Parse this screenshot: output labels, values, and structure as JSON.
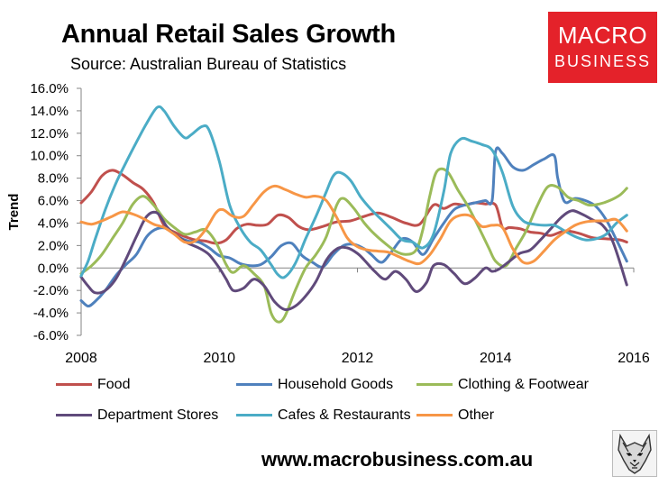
{
  "header": {
    "title": "Annual Retail Sales Growth",
    "subtitle": "Source: Australian Bureau of Statistics"
  },
  "logo": {
    "line1": "MACRO",
    "line2": "BUSINESS"
  },
  "footer": {
    "url": "www.macrobusiness.com.au"
  },
  "colors": {
    "food": "#c0504d",
    "household": "#4f81bd",
    "clothing": "#9bbb59",
    "department": "#604a7b",
    "cafes": "#4bacc6",
    "other": "#f79646",
    "logo_bg": "#e4222a"
  },
  "chart_data": {
    "type": "line",
    "title": "Annual Retail Sales Growth",
    "xlabel": "",
    "ylabel": "Trend",
    "xlim": [
      2008,
      2016
    ],
    "ylim": [
      -6,
      16
    ],
    "x_ticks": [
      "2008",
      "2010",
      "2012",
      "2014",
      "2016"
    ],
    "y_ticks": [
      "-6.0%",
      "-4.0%",
      "-2.0%",
      "0.0%",
      "2.0%",
      "4.0%",
      "6.0%",
      "8.0%",
      "10.0%",
      "12.0%",
      "14.0%",
      "16.0%"
    ],
    "grid": false,
    "legend_position": "bottom",
    "series": [
      {
        "name": "Food",
        "color": "#c0504d",
        "x": [
          2008.0,
          2008.15,
          2008.3,
          2008.45,
          2008.6,
          2008.75,
          2008.9,
          2009.05,
          2009.2,
          2009.35,
          2009.5,
          2009.65,
          2009.8,
          2009.95,
          2010.1,
          2010.25,
          2010.4,
          2010.55,
          2010.7,
          2010.85,
          2011.0,
          2011.15,
          2011.3,
          2011.5,
          2011.7,
          2011.9,
          2012.1,
          2012.3,
          2012.5,
          2012.7,
          2012.9,
          2013.1,
          2013.25,
          2013.4,
          2013.55,
          2013.7,
          2013.85,
          2014.0,
          2014.1,
          2014.2,
          2014.35,
          2014.5,
          2014.65,
          2014.8,
          2015.0,
          2015.2,
          2015.4,
          2015.6,
          2015.8,
          2015.9
        ],
        "values": [
          5.8,
          6.8,
          8.2,
          8.7,
          8.3,
          7.6,
          7.0,
          5.8,
          3.8,
          3.2,
          2.8,
          2.5,
          2.4,
          2.2,
          2.5,
          3.5,
          3.9,
          3.8,
          3.9,
          4.7,
          4.5,
          3.7,
          3.4,
          3.7,
          4.1,
          4.2,
          4.6,
          4.9,
          4.5,
          4.0,
          3.9,
          5.6,
          5.3,
          5.7,
          5.6,
          5.8,
          5.7,
          5.6,
          3.6,
          3.6,
          3.5,
          3.2,
          3.1,
          2.9,
          3.3,
          3.1,
          2.7,
          2.6,
          2.5,
          2.3
        ]
      },
      {
        "name": "Household Goods",
        "color": "#4f81bd",
        "x": [
          2008.0,
          2008.1,
          2008.2,
          2008.35,
          2008.5,
          2008.65,
          2008.8,
          2008.95,
          2009.1,
          2009.25,
          2009.4,
          2009.55,
          2009.7,
          2009.85,
          2010.0,
          2010.15,
          2010.3,
          2010.45,
          2010.6,
          2010.75,
          2010.9,
          2011.05,
          2011.2,
          2011.35,
          2011.5,
          2011.65,
          2011.8,
          2011.95,
          2012.1,
          2012.2,
          2012.35,
          2012.5,
          2012.65,
          2012.8,
          2012.95,
          2013.1,
          2013.25,
          2013.4,
          2013.55,
          2013.7,
          2013.85,
          2013.95,
          2014.0,
          2014.1,
          2014.25,
          2014.4,
          2014.55,
          2014.7,
          2014.85,
          2014.9,
          2015.0,
          2015.15,
          2015.3,
          2015.45,
          2015.6,
          2015.75,
          2015.9
        ],
        "values": [
          -2.9,
          -3.4,
          -3.0,
          -2.0,
          -0.7,
          0.3,
          1.2,
          2.8,
          3.5,
          3.5,
          2.8,
          2.4,
          2.3,
          1.8,
          1.1,
          0.9,
          0.4,
          0.2,
          0.3,
          1.0,
          2.0,
          2.2,
          1.1,
          0.5,
          0.1,
          1.2,
          2.0,
          2.1,
          1.7,
          1.2,
          0.5,
          1.5,
          2.6,
          2.3,
          1.2,
          2.6,
          4.0,
          5.2,
          5.6,
          5.8,
          6.0,
          6.0,
          10.4,
          10.2,
          9.0,
          8.7,
          9.2,
          9.7,
          10.0,
          8.0,
          5.9,
          6.2,
          6.0,
          5.5,
          4.3,
          2.5,
          0.6
        ]
      },
      {
        "name": "Clothing & Footwear",
        "color": "#9bbb59",
        "x": [
          2008.0,
          2008.15,
          2008.3,
          2008.45,
          2008.6,
          2008.75,
          2008.9,
          2009.05,
          2009.2,
          2009.35,
          2009.5,
          2009.65,
          2009.8,
          2009.95,
          2010.1,
          2010.2,
          2010.35,
          2010.5,
          2010.65,
          2010.75,
          2010.85,
          2010.95,
          2011.1,
          2011.25,
          2011.4,
          2011.55,
          2011.7,
          2011.8,
          2011.95,
          2012.1,
          2012.25,
          2012.4,
          2012.55,
          2012.7,
          2012.85,
          2012.95,
          2013.05,
          2013.15,
          2013.3,
          2013.45,
          2013.6,
          2013.75,
          2013.9,
          2014.0,
          2014.15,
          2014.3,
          2014.45,
          2014.6,
          2014.75,
          2014.9,
          2015.05,
          2015.2,
          2015.35,
          2015.5,
          2015.65,
          2015.8,
          2015.9
        ],
        "values": [
          -0.5,
          0.2,
          1.2,
          2.6,
          4.0,
          5.7,
          6.4,
          5.6,
          4.4,
          3.6,
          3.0,
          3.2,
          3.4,
          2.3,
          0.3,
          -0.4,
          0.2,
          -0.5,
          -1.6,
          -4.0,
          -4.8,
          -4.3,
          -2.0,
          0.0,
          1.2,
          2.8,
          5.6,
          6.2,
          5.3,
          4.0,
          3.0,
          2.2,
          1.5,
          1.2,
          1.6,
          3.5,
          6.5,
          8.6,
          8.6,
          7.0,
          5.5,
          3.7,
          1.8,
          0.6,
          0.2,
          1.8,
          3.4,
          5.5,
          7.2,
          7.2,
          6.3,
          6.0,
          5.6,
          5.7,
          6.0,
          6.5,
          7.1
        ]
      },
      {
        "name": "Department Stores",
        "color": "#604a7b",
        "x": [
          2008.0,
          2008.1,
          2008.2,
          2008.35,
          2008.5,
          2008.65,
          2008.8,
          2008.95,
          2009.1,
          2009.25,
          2009.4,
          2009.55,
          2009.7,
          2009.85,
          2010.0,
          2010.1,
          2010.2,
          2010.35,
          2010.5,
          2010.65,
          2010.8,
          2010.95,
          2011.1,
          2011.25,
          2011.4,
          2011.55,
          2011.7,
          2011.85,
          2012.0,
          2012.1,
          2012.25,
          2012.4,
          2012.55,
          2012.7,
          2012.85,
          2013.0,
          2013.1,
          2013.25,
          2013.4,
          2013.55,
          2013.7,
          2013.85,
          2013.95,
          2014.05,
          2014.2,
          2014.35,
          2014.5,
          2014.65,
          2014.8,
          2014.95,
          2015.1,
          2015.25,
          2015.4,
          2015.55,
          2015.7,
          2015.9
        ],
        "values": [
          -0.8,
          -1.6,
          -2.2,
          -2.0,
          -1.0,
          0.8,
          2.8,
          4.6,
          4.9,
          3.6,
          2.8,
          2.2,
          1.8,
          1.2,
          0.0,
          -1.0,
          -2.0,
          -1.8,
          -1.0,
          -1.6,
          -3.0,
          -3.7,
          -3.4,
          -2.5,
          -1.2,
          0.7,
          1.7,
          1.8,
          1.3,
          0.7,
          -0.3,
          -1.0,
          -0.3,
          -1.0,
          -2.1,
          -1.3,
          0.2,
          0.3,
          -0.5,
          -1.4,
          -0.9,
          0.0,
          -0.3,
          -0.1,
          0.6,
          1.3,
          1.6,
          2.5,
          3.5,
          4.5,
          5.1,
          4.8,
          4.3,
          3.8,
          2.3,
          -1.5
        ]
      },
      {
        "name": "Cafes & Restaurants",
        "color": "#4bacc6",
        "x": [
          2008.0,
          2008.1,
          2008.2,
          2008.35,
          2008.5,
          2008.65,
          2008.8,
          2008.95,
          2009.1,
          2009.2,
          2009.35,
          2009.5,
          2009.6,
          2009.75,
          2009.85,
          2010.0,
          2010.15,
          2010.3,
          2010.45,
          2010.6,
          2010.75,
          2010.85,
          2010.95,
          2011.1,
          2011.25,
          2011.4,
          2011.55,
          2011.65,
          2011.75,
          2011.9,
          2012.05,
          2012.2,
          2012.35,
          2012.5,
          2012.65,
          2012.8,
          2012.95,
          2013.1,
          2013.25,
          2013.35,
          2013.5,
          2013.65,
          2013.8,
          2013.95,
          2014.1,
          2014.25,
          2014.4,
          2014.55,
          2014.7,
          2014.85,
          2015.0,
          2015.15,
          2015.3,
          2015.45,
          2015.6,
          2015.75,
          2015.9
        ],
        "values": [
          -0.7,
          0.6,
          2.5,
          5.2,
          7.5,
          9.4,
          11.2,
          12.9,
          14.3,
          14.0,
          12.6,
          11.6,
          11.9,
          12.6,
          12.3,
          9.5,
          5.6,
          3.6,
          2.3,
          1.6,
          0.3,
          -0.6,
          -0.8,
          0.4,
          2.6,
          4.6,
          6.8,
          8.2,
          8.5,
          7.8,
          6.3,
          5.2,
          4.3,
          3.4,
          2.5,
          2.3,
          1.8,
          3.0,
          6.8,
          10.2,
          11.5,
          11.3,
          11.0,
          10.5,
          8.5,
          5.5,
          4.2,
          3.9,
          3.8,
          3.8,
          3.3,
          2.8,
          2.5,
          2.6,
          3.0,
          4.0,
          4.7
        ]
      },
      {
        "name": "Other",
        "color": "#f79646",
        "x": [
          2008.0,
          2008.15,
          2008.3,
          2008.45,
          2008.6,
          2008.75,
          2008.9,
          2009.05,
          2009.2,
          2009.35,
          2009.5,
          2009.65,
          2009.8,
          2009.95,
          2010.05,
          2010.2,
          2010.35,
          2010.5,
          2010.65,
          2010.8,
          2010.95,
          2011.1,
          2011.25,
          2011.4,
          2011.55,
          2011.7,
          2011.85,
          2012.0,
          2012.15,
          2012.3,
          2012.45,
          2012.6,
          2012.75,
          2012.9,
          2013.05,
          2013.2,
          2013.35,
          2013.5,
          2013.65,
          2013.8,
          2013.95,
          2014.1,
          2014.25,
          2014.4,
          2014.55,
          2014.7,
          2014.85,
          2015.0,
          2015.15,
          2015.3,
          2015.45,
          2015.6,
          2015.75,
          2015.9
        ],
        "values": [
          4.1,
          3.9,
          4.2,
          4.6,
          5.0,
          4.8,
          4.4,
          3.9,
          3.6,
          3.0,
          2.3,
          2.4,
          3.4,
          4.9,
          5.2,
          4.6,
          4.6,
          5.7,
          6.8,
          7.3,
          7.0,
          6.6,
          6.3,
          6.4,
          6.0,
          4.5,
          2.7,
          1.9,
          1.6,
          1.5,
          1.4,
          1.0,
          0.6,
          0.4,
          1.2,
          2.6,
          4.2,
          4.7,
          4.6,
          3.7,
          3.8,
          3.6,
          1.7,
          0.5,
          0.6,
          1.5,
          2.5,
          3.2,
          3.8,
          4.1,
          4.2,
          4.2,
          4.3,
          3.3
        ]
      }
    ]
  },
  "legend": [
    {
      "key": "food",
      "label": "Food"
    },
    {
      "key": "household",
      "label": "Household Goods"
    },
    {
      "key": "clothing",
      "label": "Clothing & Footwear"
    },
    {
      "key": "department",
      "label": "Department Stores"
    },
    {
      "key": "cafes",
      "label": "Cafes & Restaurants"
    },
    {
      "key": "other",
      "label": "Other"
    }
  ]
}
